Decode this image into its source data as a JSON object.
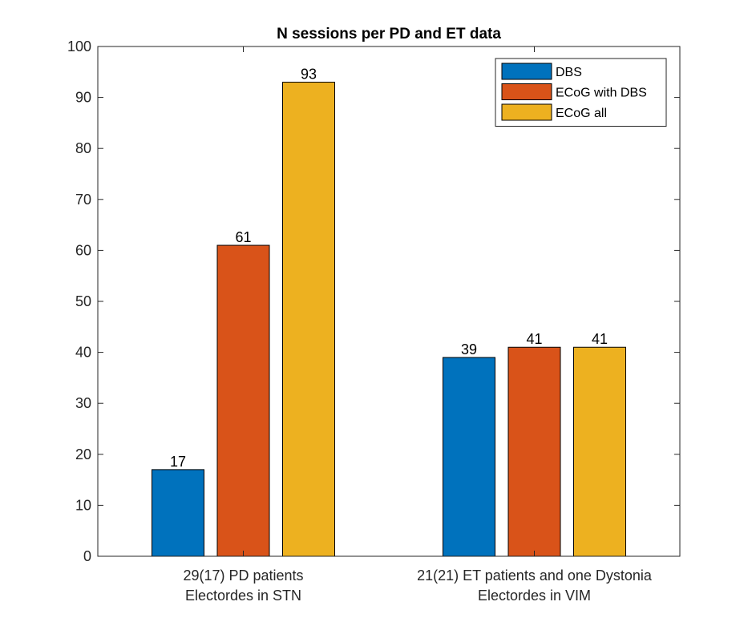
{
  "chart_data": {
    "type": "bar",
    "title": "N sessions per PD and ET data",
    "xlabel": "",
    "ylabel": "",
    "ylim": [
      0,
      100
    ],
    "yticks": [
      0,
      10,
      20,
      30,
      40,
      50,
      60,
      70,
      80,
      90,
      100
    ],
    "grid": false,
    "legend_position": "top-right",
    "categories": [
      [
        "29(17) PD patients",
        "Electordes in STN"
      ],
      [
        "21(21) ET patients and one Dystonia",
        "Electordes in VIM"
      ]
    ],
    "series": [
      {
        "name": "DBS",
        "color": "#0072BD",
        "values": [
          17,
          39
        ]
      },
      {
        "name": "ECoG with DBS",
        "color": "#D95319",
        "values": [
          61,
          41
        ]
      },
      {
        "name": "ECoG all",
        "color": "#EDB120",
        "values": [
          93,
          41
        ]
      }
    ]
  }
}
